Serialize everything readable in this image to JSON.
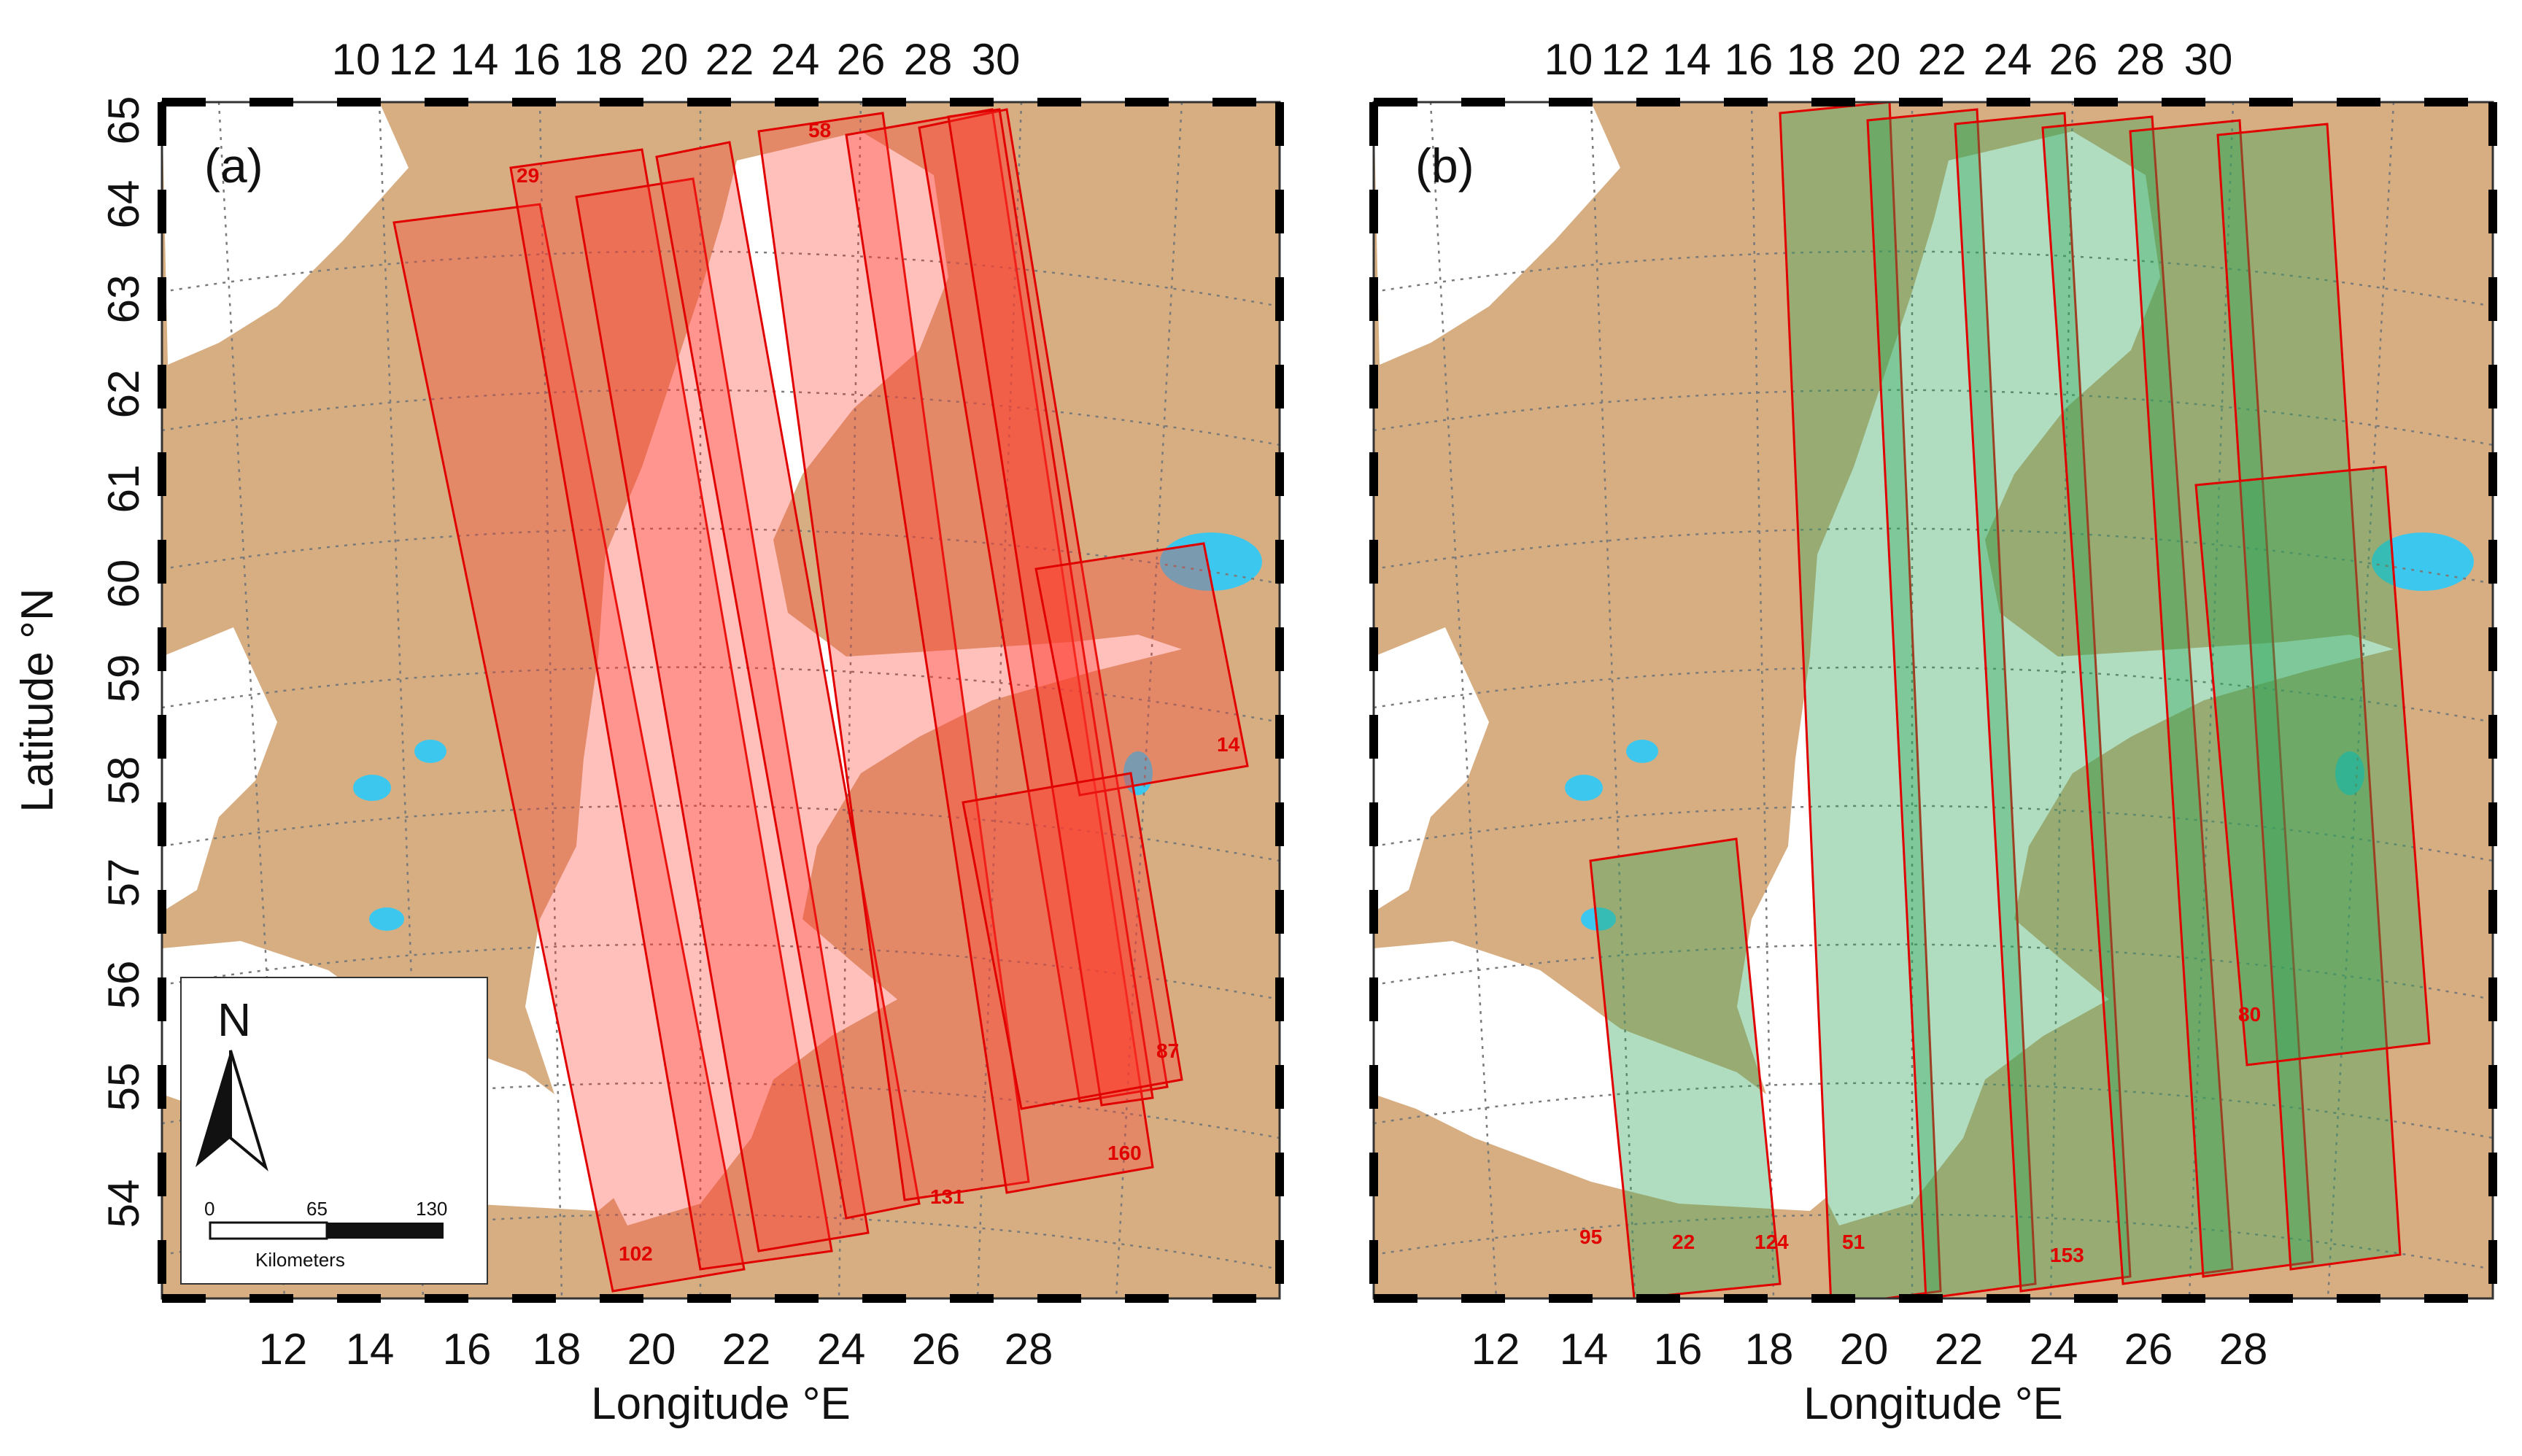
{
  "colors": {
    "land": "#d7ae82",
    "sea": "#ffffff",
    "lake": "#3cc8ee",
    "track_stroke": "#e00000",
    "fill_a": "#ff3b2f",
    "fill_b": "#2fa65a",
    "grid": "#7a7a7a"
  },
  "axis": {
    "xlabel": "Longitude °E",
    "ylabel": "Latitude °N"
  },
  "panels": [
    {
      "label": "(a)",
      "top_ticks": [
        "10",
        "12",
        "14",
        "16",
        "18",
        "20",
        "22",
        "24",
        "26",
        "28",
        "30"
      ],
      "bottom_ticks": [
        "12",
        "14",
        "16",
        "18",
        "20",
        "22",
        "24",
        "26",
        "28"
      ],
      "left_ticks": [
        "54",
        "55",
        "56",
        "57",
        "58",
        "59",
        "60",
        "61",
        "62",
        "63",
        "64",
        "65"
      ],
      "track_labels": [
        "29",
        "58",
        "14",
        "87",
        "160",
        "131",
        "102"
      ]
    },
    {
      "label": "(b)",
      "top_ticks": [
        "10",
        "12",
        "14",
        "16",
        "18",
        "20",
        "22",
        "24",
        "26",
        "28",
        "30"
      ],
      "bottom_ticks": [
        "12",
        "14",
        "16",
        "18",
        "20",
        "22",
        "24",
        "26",
        "28"
      ],
      "track_labels": [
        "80",
        "95",
        "22",
        "124",
        "51",
        "153"
      ]
    }
  ],
  "scalebar": {
    "north_label": "N",
    "ticks": [
      "0",
      "65",
      "130"
    ],
    "units": "Kilometers"
  }
}
